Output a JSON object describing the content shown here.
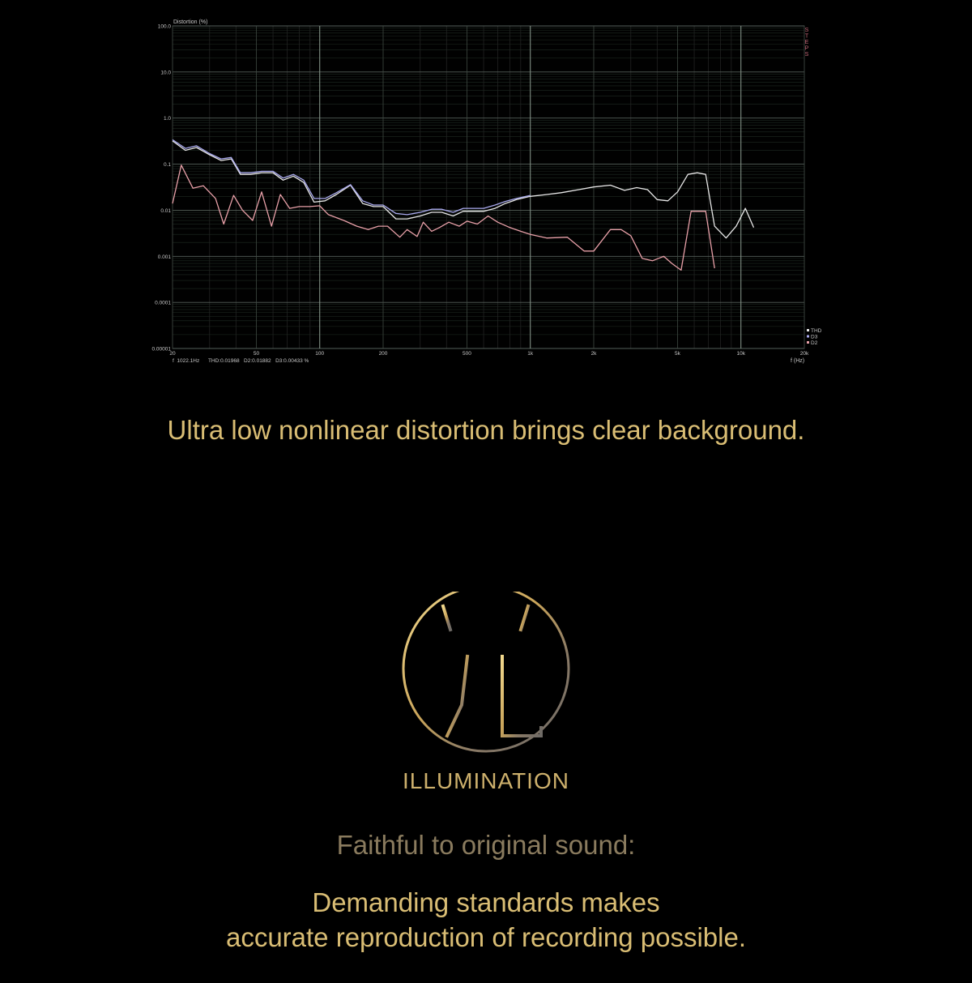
{
  "chart_data": {
    "type": "line",
    "ylabel": "Distortion (%)",
    "xlabel": "f (Hz)",
    "y_scale": "log",
    "x_scale": "log",
    "xlim": [
      20,
      20000
    ],
    "ylim": [
      1e-05,
      100
    ],
    "grid": true,
    "legend_position": "right-bottom",
    "x_ticks": [
      {
        "value": 20,
        "label": "20"
      },
      {
        "value": 50,
        "label": "50"
      },
      {
        "value": 100,
        "label": "100"
      },
      {
        "value": 200,
        "label": "200"
      },
      {
        "value": 500,
        "label": "500"
      },
      {
        "value": 1000,
        "label": "1k"
      },
      {
        "value": 2000,
        "label": "2k"
      },
      {
        "value": 5000,
        "label": "5k"
      },
      {
        "value": 10000,
        "label": "10k"
      },
      {
        "value": 20000,
        "label": "20k"
      }
    ],
    "y_ticks": [
      {
        "value": 100,
        "label": "100.0"
      },
      {
        "value": 10,
        "label": "10.0"
      },
      {
        "value": 1,
        "label": "1.0"
      },
      {
        "value": 0.1,
        "label": "0.1"
      },
      {
        "value": 0.01,
        "label": "0.01"
      },
      {
        "value": 0.001,
        "label": "0.001"
      },
      {
        "value": 0.0001,
        "label": "0.0001"
      },
      {
        "value": 1e-05,
        "label": "0.00001"
      }
    ],
    "steps_label": "STEPS",
    "readout": "f  1022.1Hz      THD:0.01968   D2:0.01882   D3:0.00433 %",
    "series": [
      {
        "name": "THD",
        "color": "#e8e8e8",
        "x": [
          20,
          23,
          26,
          30,
          34,
          38,
          42,
          47,
          53,
          60,
          67,
          75,
          84,
          94,
          106,
          120,
          140,
          160,
          180,
          200,
          230,
          260,
          300,
          340,
          380,
          430,
          480,
          540,
          600,
          680,
          760,
          860,
          1000,
          1200,
          1400,
          1700,
          2000,
          2400,
          2800,
          3200,
          3600,
          4000,
          4500,
          5000,
          5600,
          6200,
          6800,
          7500,
          8500,
          9500,
          10500,
          11500
        ],
        "y": [
          0.32,
          0.2,
          0.23,
          0.16,
          0.12,
          0.13,
          0.06,
          0.06,
          0.065,
          0.065,
          0.045,
          0.055,
          0.04,
          0.015,
          0.016,
          0.022,
          0.035,
          0.014,
          0.012,
          0.012,
          0.0065,
          0.0065,
          0.0075,
          0.009,
          0.009,
          0.0075,
          0.0095,
          0.0095,
          0.0095,
          0.011,
          0.014,
          0.017,
          0.02,
          0.022,
          0.024,
          0.028,
          0.032,
          0.035,
          0.027,
          0.031,
          0.028,
          0.017,
          0.016,
          0.025,
          0.06,
          0.065,
          0.06,
          0.0045,
          0.0025,
          0.0045,
          0.011,
          0.0042
        ]
      },
      {
        "name": "D3",
        "color": "#a9a9ee",
        "x": [
          20,
          23,
          26,
          30,
          34,
          38,
          42,
          47,
          53,
          60,
          67,
          75,
          84,
          94,
          106,
          120,
          140,
          160,
          180,
          200,
          230,
          260,
          300,
          340,
          380,
          430,
          480,
          540,
          600,
          680,
          760,
          860,
          1000
        ],
        "y": [
          0.34,
          0.22,
          0.25,
          0.17,
          0.13,
          0.14,
          0.065,
          0.065,
          0.07,
          0.07,
          0.05,
          0.06,
          0.045,
          0.018,
          0.018,
          0.024,
          0.036,
          0.016,
          0.013,
          0.013,
          0.0085,
          0.008,
          0.009,
          0.0105,
          0.0105,
          0.009,
          0.011,
          0.011,
          0.011,
          0.013,
          0.0155,
          0.018,
          0.021
        ]
      },
      {
        "name": "D2",
        "color": "#e8a0a8",
        "x": [
          20,
          22,
          25,
          28,
          32,
          35,
          39,
          43,
          48,
          53,
          59,
          65,
          72,
          80,
          90,
          100,
          110,
          130,
          150,
          170,
          190,
          210,
          240,
          260,
          290,
          310,
          340,
          370,
          410,
          460,
          500,
          560,
          630,
          700,
          800,
          900,
          1000,
          1200,
          1500,
          1800,
          2000,
          2400,
          2700,
          3000,
          3400,
          3800,
          4300,
          4700,
          5200,
          5800,
          6200,
          6800,
          7500
        ],
        "y": [
          0.014,
          0.095,
          0.03,
          0.034,
          0.018,
          0.005,
          0.021,
          0.01,
          0.006,
          0.025,
          0.0045,
          0.022,
          0.011,
          0.012,
          0.012,
          0.0125,
          0.008,
          0.006,
          0.0045,
          0.0038,
          0.0045,
          0.0045,
          0.0026,
          0.0038,
          0.0027,
          0.0055,
          0.0035,
          0.0042,
          0.0055,
          0.0045,
          0.0058,
          0.005,
          0.0075,
          0.0055,
          0.0042,
          0.0035,
          0.003,
          0.0025,
          0.0026,
          0.0013,
          0.0013,
          0.0038,
          0.0038,
          0.0028,
          0.0009,
          0.0008,
          0.001,
          0.0007,
          0.0005,
          0.0095,
          0.0095,
          0.0095,
          0.00055
        ]
      }
    ]
  },
  "texts": {
    "tagline": "Ultra low nonlinear distortion brings clear background.",
    "brand": "ILLUMINATION",
    "faithful": "Faithful to original sound:",
    "demand_line1": "Demanding standards makes",
    "demand_line2": "accurate reproduction of recording possible."
  },
  "colors": {
    "gold": "#d9bd74",
    "muted": "#8a7b5e",
    "background": "#000000"
  }
}
